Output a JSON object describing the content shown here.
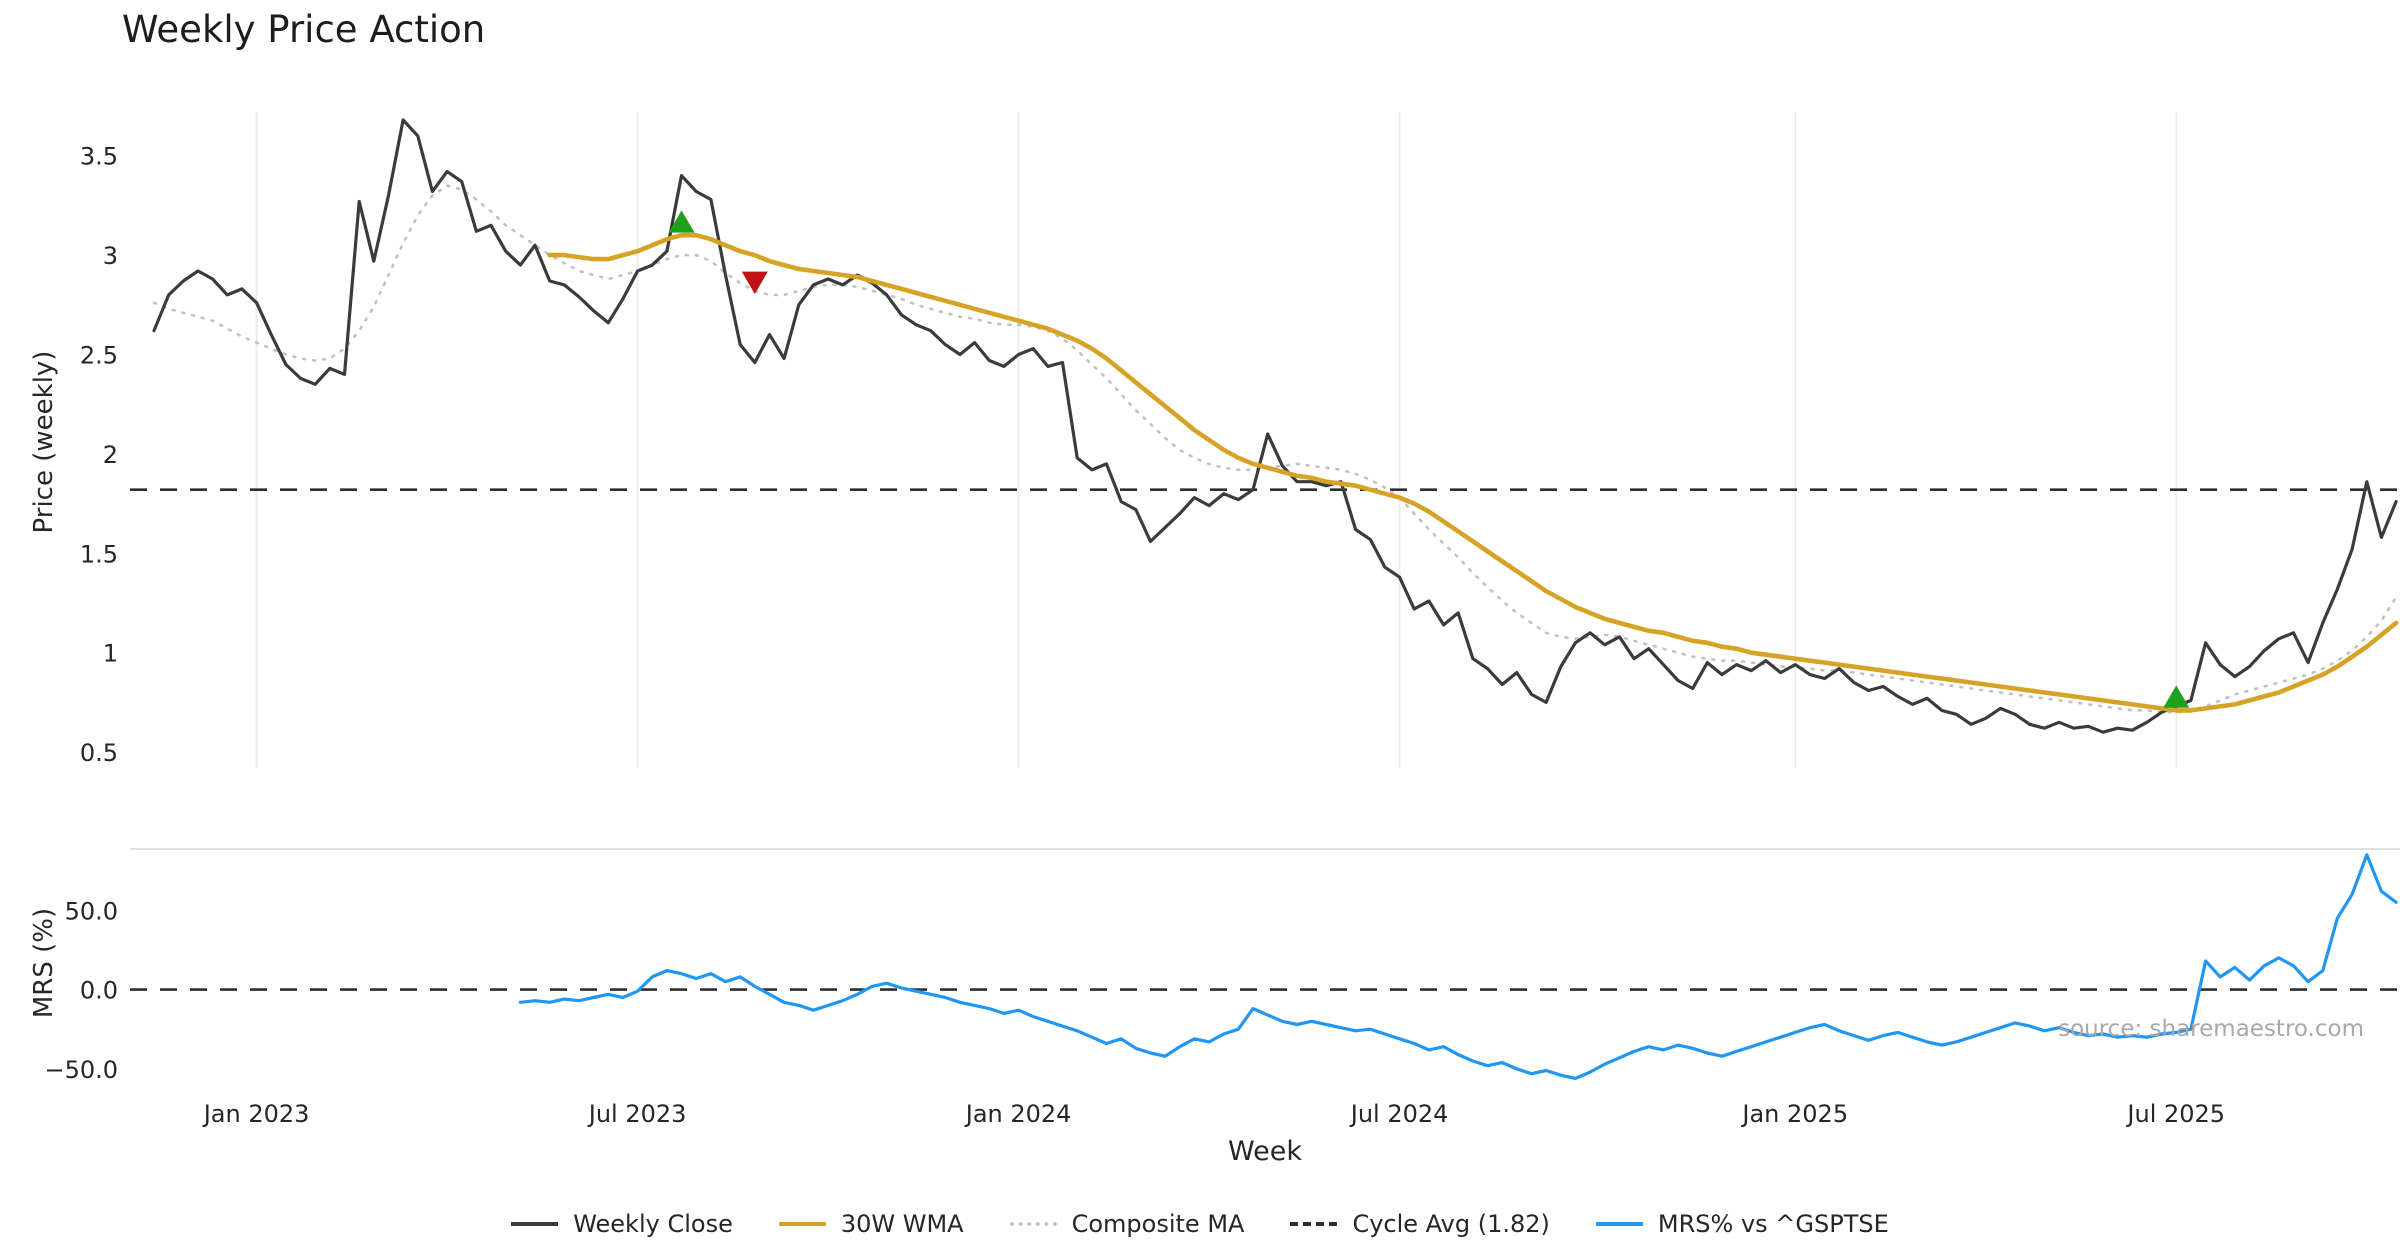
{
  "chart_data": [
    {
      "type": "line",
      "title": "Weekly Price Action",
      "xlabel": "Week",
      "ylabel": "Price (weekly)",
      "ylim": [
        0.42,
        3.72
      ],
      "grid": "vertical-light",
      "cycle_avg": 1.82,
      "yticks": [
        {
          "value": 0.5,
          "label": "0.5"
        },
        {
          "value": 1,
          "label": "1"
        },
        {
          "value": 1.5,
          "label": "1.5"
        },
        {
          "value": 2,
          "label": "2"
        },
        {
          "value": 2.5,
          "label": "2.5"
        },
        {
          "value": 3,
          "label": "3"
        },
        {
          "value": 3.5,
          "label": "3.5"
        }
      ],
      "xticks": [
        {
          "week": 7,
          "label": "Jan 2023"
        },
        {
          "week": 33,
          "label": "Jul 2023"
        },
        {
          "week": 59,
          "label": "Jan 2024"
        },
        {
          "week": 85,
          "label": "Jul 2024"
        },
        {
          "week": 112,
          "label": "Jan 2025"
        },
        {
          "week": 138,
          "label": "Jul 2025"
        }
      ],
      "series": [
        {
          "name": "Weekly Close",
          "color": "#3b3b3b",
          "style": "solid",
          "start_week": 0,
          "values": [
            2.62,
            2.8,
            2.87,
            2.92,
            2.88,
            2.8,
            2.83,
            2.76,
            2.6,
            2.45,
            2.38,
            2.35,
            2.43,
            2.4,
            3.27,
            2.97,
            3.3,
            3.68,
            3.6,
            3.32,
            3.42,
            3.37,
            3.12,
            3.15,
            3.02,
            2.95,
            3.05,
            2.87,
            2.85,
            2.79,
            2.72,
            2.66,
            2.78,
            2.92,
            2.95,
            3.02,
            3.4,
            3.32,
            3.28,
            2.9,
            2.55,
            2.46,
            2.6,
            2.48,
            2.75,
            2.85,
            2.88,
            2.85,
            2.9,
            2.86,
            2.8,
            2.7,
            2.65,
            2.62,
            2.55,
            2.5,
            2.56,
            2.47,
            2.44,
            2.5,
            2.53,
            2.44,
            2.46,
            1.98,
            1.92,
            1.95,
            1.76,
            1.72,
            1.56,
            1.63,
            1.7,
            1.78,
            1.74,
            1.8,
            1.77,
            1.82,
            2.1,
            1.94,
            1.86,
            1.86,
            1.84,
            1.86,
            1.62,
            1.57,
            1.43,
            1.38,
            1.22,
            1.26,
            1.14,
            1.2,
            0.97,
            0.92,
            0.84,
            0.9,
            0.79,
            0.75,
            0.93,
            1.05,
            1.1,
            1.04,
            1.08,
            0.97,
            1.02,
            0.94,
            0.86,
            0.82,
            0.95,
            0.89,
            0.94,
            0.91,
            0.96,
            0.9,
            0.94,
            0.89,
            0.87,
            0.92,
            0.85,
            0.81,
            0.83,
            0.78,
            0.74,
            0.77,
            0.71,
            0.69,
            0.64,
            0.67,
            0.72,
            0.69,
            0.64,
            0.62,
            0.65,
            0.62,
            0.63,
            0.6,
            0.62,
            0.61,
            0.65,
            0.7,
            0.73,
            0.76,
            1.05,
            0.94,
            0.88,
            0.93,
            1.01,
            1.07,
            1.1,
            0.95,
            1.15,
            1.32,
            1.52,
            1.86,
            1.58,
            1.76
          ]
        },
        {
          "name": "30W WMA",
          "color": "#d6a327",
          "style": "solid",
          "start_week": 27,
          "values": [
            3.0,
            3.0,
            2.99,
            2.98,
            2.98,
            3.0,
            3.02,
            3.05,
            3.08,
            3.1,
            3.1,
            3.08,
            3.05,
            3.02,
            3.0,
            2.97,
            2.95,
            2.93,
            2.92,
            2.91,
            2.9,
            2.89,
            2.87,
            2.85,
            2.83,
            2.81,
            2.79,
            2.77,
            2.75,
            2.73,
            2.71,
            2.69,
            2.67,
            2.65,
            2.63,
            2.6,
            2.57,
            2.53,
            2.48,
            2.42,
            2.36,
            2.3,
            2.24,
            2.18,
            2.12,
            2.07,
            2.02,
            1.98,
            1.95,
            1.93,
            1.91,
            1.89,
            1.88,
            1.86,
            1.85,
            1.84,
            1.82,
            1.8,
            1.78,
            1.75,
            1.71,
            1.66,
            1.61,
            1.56,
            1.51,
            1.46,
            1.41,
            1.36,
            1.31,
            1.27,
            1.23,
            1.2,
            1.17,
            1.15,
            1.13,
            1.11,
            1.1,
            1.08,
            1.06,
            1.05,
            1.03,
            1.02,
            1.0,
            0.99,
            0.98,
            0.97,
            0.96,
            0.95,
            0.94,
            0.93,
            0.92,
            0.91,
            0.9,
            0.89,
            0.88,
            0.87,
            0.86,
            0.85,
            0.84,
            0.83,
            0.82,
            0.81,
            0.8,
            0.79,
            0.78,
            0.77,
            0.76,
            0.75,
            0.74,
            0.73,
            0.72,
            0.71,
            0.71,
            0.72,
            0.73,
            0.74,
            0.76,
            0.78,
            0.8,
            0.83,
            0.86,
            0.89,
            0.93,
            0.98,
            1.03,
            1.09,
            1.15
          ]
        },
        {
          "name": "Composite MA",
          "color": "#c2c2c2",
          "style": "dotted",
          "start_week": 0,
          "values": [
            2.76,
            2.73,
            2.71,
            2.69,
            2.67,
            2.63,
            2.59,
            2.56,
            2.53,
            2.5,
            2.48,
            2.47,
            2.48,
            2.53,
            2.62,
            2.74,
            2.9,
            3.06,
            3.2,
            3.3,
            3.35,
            3.33,
            3.28,
            3.22,
            3.15,
            3.1,
            3.05,
            3.0,
            2.96,
            2.92,
            2.9,
            2.88,
            2.9,
            2.92,
            2.95,
            2.98,
            3.0,
            3.0,
            2.97,
            2.91,
            2.86,
            2.82,
            2.8,
            2.8,
            2.82,
            2.84,
            2.85,
            2.85,
            2.84,
            2.82,
            2.8,
            2.78,
            2.75,
            2.73,
            2.71,
            2.69,
            2.68,
            2.66,
            2.65,
            2.65,
            2.64,
            2.62,
            2.58,
            2.52,
            2.45,
            2.38,
            2.3,
            2.22,
            2.15,
            2.08,
            2.02,
            1.98,
            1.95,
            1.93,
            1.92,
            1.92,
            1.93,
            1.94,
            1.95,
            1.94,
            1.93,
            1.92,
            1.9,
            1.87,
            1.83,
            1.78,
            1.7,
            1.62,
            1.55,
            1.48,
            1.4,
            1.33,
            1.26,
            1.2,
            1.15,
            1.1,
            1.08,
            1.07,
            1.08,
            1.09,
            1.08,
            1.06,
            1.04,
            1.02,
            1.0,
            0.98,
            0.97,
            0.96,
            0.96,
            0.95,
            0.94,
            0.93,
            0.93,
            0.92,
            0.91,
            0.91,
            0.9,
            0.89,
            0.88,
            0.87,
            0.86,
            0.85,
            0.84,
            0.83,
            0.82,
            0.81,
            0.8,
            0.79,
            0.78,
            0.77,
            0.76,
            0.75,
            0.74,
            0.73,
            0.72,
            0.71,
            0.71,
            0.7,
            0.7,
            0.71,
            0.73,
            0.76,
            0.79,
            0.81,
            0.83,
            0.85,
            0.87,
            0.89,
            0.92,
            0.96,
            1.01,
            1.08,
            1.16,
            1.28
          ]
        }
      ],
      "markers": [
        {
          "week": 36,
          "value": 3.16,
          "shape": "triangle-up",
          "color": "#1ea21e"
        },
        {
          "week": 41,
          "value": 2.87,
          "shape": "triangle-down",
          "color": "#bf1111"
        },
        {
          "week": 138,
          "value": 0.77,
          "shape": "triangle-up",
          "color": "#1ea21e"
        }
      ]
    },
    {
      "type": "line",
      "ylabel": "MRS (%)",
      "ylim": [
        -57,
        88
      ],
      "zero_line": 0,
      "watermark": "source: sharemaestro.com",
      "yticks": [
        {
          "value": 50,
          "label": "50.0"
        },
        {
          "value": 0,
          "label": "0.0"
        },
        {
          "value": -50,
          "label": "−50.0"
        }
      ],
      "series": [
        {
          "name": "MRS% vs ^GSPTSE",
          "color": "#2196f3",
          "style": "solid",
          "start_week": 25,
          "values": [
            -8,
            -7,
            -8,
            -6,
            -7,
            -5,
            -3,
            -5,
            -1,
            8,
            12,
            10,
            7,
            10,
            5,
            8,
            2,
            -3,
            -8,
            -10,
            -13,
            -10,
            -7,
            -3,
            2,
            4,
            1,
            -1,
            -3,
            -5,
            -8,
            -10,
            -12,
            -15,
            -13,
            -17,
            -20,
            -23,
            -26,
            -30,
            -34,
            -31,
            -37,
            -40,
            -42,
            -36,
            -31,
            -33,
            -28,
            -25,
            -12,
            -16,
            -20,
            -22,
            -20,
            -22,
            -24,
            -26,
            -25,
            -28,
            -31,
            -34,
            -38,
            -36,
            -41,
            -45,
            -48,
            -46,
            -50,
            -53,
            -51,
            -54,
            -56,
            -52,
            -47,
            -43,
            -39,
            -36,
            -38,
            -35,
            -37,
            -40,
            -42,
            -39,
            -36,
            -33,
            -30,
            -27,
            -24,
            -22,
            -26,
            -29,
            -32,
            -29,
            -27,
            -30,
            -33,
            -35,
            -33,
            -30,
            -27,
            -24,
            -21,
            -23,
            -26,
            -24,
            -27,
            -29,
            -28,
            -30,
            -29,
            -30,
            -28,
            -27,
            -25,
            18,
            8,
            14,
            6,
            15,
            20,
            15,
            5,
            12,
            45,
            60,
            85,
            62,
            55
          ]
        }
      ]
    }
  ],
  "legend": {
    "items": [
      {
        "label": "Weekly Close",
        "color": "#3b3b3b",
        "style": "solid"
      },
      {
        "label": "30W WMA",
        "color": "#d6a327",
        "style": "solid"
      },
      {
        "label": "Composite MA",
        "color": "#c2c2c2",
        "style": "dotted"
      },
      {
        "label": "Cycle Avg (1.82)",
        "color": "#2f2f2f",
        "style": "dashed"
      },
      {
        "label": "MRS% vs ^GSPTSE",
        "color": "#2196f3",
        "style": "solid"
      }
    ]
  }
}
